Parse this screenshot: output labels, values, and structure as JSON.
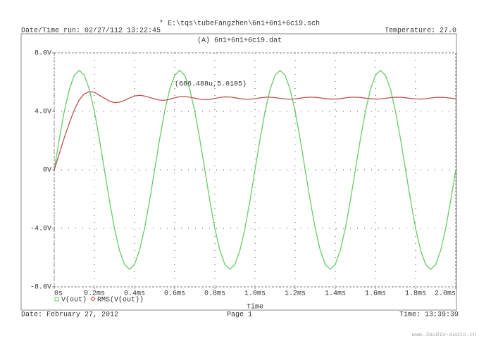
{
  "chart_data": {
    "type": "line",
    "file": "* E:\\tqs\\tubeFangzhen\\6n1+6n1+6c19.sch",
    "run_info": "Date/Time run: 02/27/112 13:22:45",
    "temperature": "Temperature: 27.0",
    "title": "(A) 6n1+6n1+6c19.dat",
    "x_label": "Time",
    "annotation": "(686.488u,5.0105)",
    "footer": {
      "date": "Date: February 27, 2012",
      "page": "Page 1",
      "time": "Time: 13:39:39"
    },
    "watermark": "www.3audio-audio.cn",
    "grid": true,
    "xlim": [
      0,
      2.0
    ],
    "xticks": [
      {
        "value": 0,
        "label": "0s"
      },
      {
        "value": 0.2,
        "label": "0.2ms"
      },
      {
        "value": 0.4,
        "label": "0.4ms"
      },
      {
        "value": 0.6,
        "label": "0.6ms"
      },
      {
        "value": 0.8,
        "label": "0.8ms"
      },
      {
        "value": 1.0,
        "label": "1.0ms"
      },
      {
        "value": 1.2,
        "label": "1.2ms"
      },
      {
        "value": 1.4,
        "label": "1.4ms"
      },
      {
        "value": 1.6,
        "label": "1.6ms"
      },
      {
        "value": 1.8,
        "label": "1.8ms"
      },
      {
        "value": 2.0,
        "label": "2.0ms"
      }
    ],
    "ylim": [
      -8,
      8
    ],
    "yticks": [
      {
        "value": -8,
        "label": "-8.0V"
      },
      {
        "value": -4,
        "label": "-4.0V"
      },
      {
        "value": 0,
        "label": "0V"
      },
      {
        "value": 4,
        "label": "4.0V"
      },
      {
        "value": 8,
        "label": "8.0V"
      }
    ],
    "x": [
      0,
      0.025,
      0.05,
      0.075,
      0.1,
      0.125,
      0.15,
      0.175,
      0.2,
      0.225,
      0.25,
      0.275,
      0.3,
      0.325,
      0.35,
      0.375,
      0.4,
      0.425,
      0.45,
      0.475,
      0.5,
      0.525,
      0.55,
      0.575,
      0.6,
      0.625,
      0.65,
      0.675,
      0.7,
      0.725,
      0.75,
      0.775,
      0.8,
      0.825,
      0.85,
      0.875,
      0.9,
      0.925,
      0.95,
      0.975,
      1.0,
      1.025,
      1.05,
      1.075,
      1.1,
      1.125,
      1.15,
      1.175,
      1.2,
      1.225,
      1.25,
      1.275,
      1.3,
      1.325,
      1.35,
      1.375,
      1.4,
      1.425,
      1.45,
      1.475,
      1.5,
      1.525,
      1.55,
      1.575,
      1.6,
      1.625,
      1.65,
      1.675,
      1.7,
      1.725,
      1.75,
      1.775,
      1.8,
      1.825,
      1.85,
      1.875,
      1.9,
      1.925,
      1.95,
      1.975,
      2.0
    ],
    "series": [
      {
        "name": "V(out)",
        "color": "#66cc66",
        "values": [
          0,
          2.1,
          4.0,
          5.5,
          6.47,
          6.8,
          6.47,
          5.5,
          4.0,
          2.1,
          0,
          -2.1,
          -4.0,
          -5.5,
          -6.47,
          -6.8,
          -6.47,
          -5.5,
          -4.0,
          -2.1,
          0,
          2.1,
          4.0,
          5.5,
          6.47,
          6.8,
          6.47,
          5.5,
          4.0,
          2.1,
          0,
          -2.1,
          -4.0,
          -5.5,
          -6.47,
          -6.8,
          -6.47,
          -5.5,
          -4.0,
          -2.1,
          0,
          2.1,
          4.0,
          5.5,
          6.47,
          6.8,
          6.47,
          5.5,
          4.0,
          2.1,
          0,
          -2.1,
          -4.0,
          -5.5,
          -6.47,
          -6.8,
          -6.47,
          -5.5,
          -4.0,
          -2.1,
          0,
          2.1,
          4.0,
          5.5,
          6.47,
          6.8,
          6.47,
          5.5,
          4.0,
          2.1,
          0,
          -2.1,
          -4.0,
          -5.5,
          -6.47,
          -6.8,
          -6.47,
          -5.5,
          -4.0,
          -2.1,
          0
        ]
      },
      {
        "name": "RMS(V(out))",
        "color": "#b85450",
        "values": [
          0,
          1.1,
          2.2,
          3.2,
          4.1,
          4.8,
          5.2,
          5.35,
          5.3,
          5.1,
          4.9,
          4.7,
          4.6,
          4.62,
          4.75,
          4.92,
          5.05,
          5.1,
          5.05,
          4.95,
          4.85,
          4.77,
          4.76,
          4.83,
          4.93,
          5.0,
          5.01,
          4.97,
          4.9,
          4.83,
          4.8,
          4.82,
          4.88,
          4.95,
          4.99,
          4.98,
          4.93,
          4.87,
          4.83,
          4.83,
          4.86,
          4.92,
          4.96,
          4.97,
          4.94,
          4.89,
          4.85,
          4.83,
          4.85,
          4.9,
          4.95,
          4.97,
          4.96,
          4.92,
          4.87,
          4.84,
          4.84,
          4.87,
          4.92,
          4.96,
          4.97,
          4.95,
          4.9,
          4.86,
          4.84,
          4.85,
          4.89,
          4.94,
          4.96,
          4.96,
          4.93,
          4.88,
          4.85,
          4.84,
          4.86,
          4.91,
          4.95,
          4.96,
          4.94,
          4.9,
          4.86
        ]
      }
    ]
  }
}
